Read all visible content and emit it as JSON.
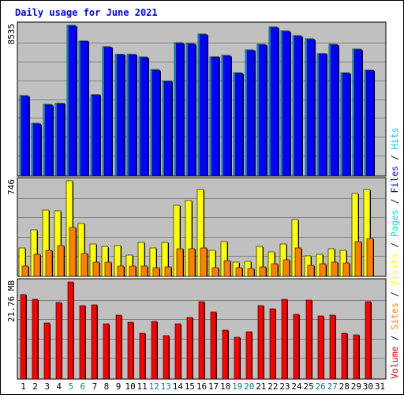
{
  "chart_data": {
    "type": "bar",
    "title": "Daily usage for June 2021",
    "categories": [
      "1",
      "2",
      "3",
      "4",
      "5",
      "6",
      "7",
      "8",
      "9",
      "10",
      "11",
      "12",
      "13",
      "14",
      "15",
      "16",
      "17",
      "18",
      "19",
      "20",
      "21",
      "22",
      "23",
      "24",
      "25",
      "26",
      "27",
      "28",
      "29",
      "30",
      "31"
    ],
    "weekend_days": [
      "5",
      "6",
      "12",
      "13",
      "19",
      "20",
      "26",
      "27"
    ],
    "colors": {
      "title": "#0000ff",
      "panel_bg": "#c0c0c0",
      "frame_bg": "#ffffff",
      "grid": "#808080",
      "hits": "#00c0ff",
      "files": "#0000ff",
      "pages": "#00e0e0",
      "visits": "#ffff00",
      "sites": "#ff8000",
      "kbytes": "#ff0000",
      "weekday_label": "#000000",
      "weekend_label": "#008080"
    },
    "panels": [
      {
        "id": "hits-files",
        "ymax_label": "8535",
        "ymax": 8535,
        "series": [
          {
            "name": "Hits",
            "color_key": "hits",
            "values": [
              4560,
              2990,
              4060,
              4120,
              8535,
              7660,
              4620,
              7330,
              6900,
              6890,
              6750,
              6040,
              5380,
              7550,
              7510,
              8035,
              6760,
              6820,
              5840,
              7140,
              7450,
              8440,
              8220,
              7960,
              7780,
              6940,
              7450,
              5860,
              7190,
              6010,
              0
            ]
          },
          {
            "name": "Files",
            "color_key": "files",
            "values": [
              4520,
              2960,
              4030,
              4100,
              8495,
              7630,
              4590,
              7300,
              6870,
              6860,
              6720,
              6010,
              5350,
              7520,
              7480,
              8005,
              6730,
              6790,
              5810,
              7110,
              7420,
              8410,
              8190,
              7930,
              7750,
              6910,
              7420,
              5830,
              7160,
              5980,
              0
            ]
          }
        ]
      },
      {
        "id": "pages-visits-sites",
        "ymax_label": "746",
        "ymax": 746,
        "series": [
          {
            "name": "Pages",
            "color_key": "pages",
            "values": [
              0,
              0,
              0,
              0,
              0,
              0,
              0,
              0,
              0,
              0,
              0,
              0,
              0,
              0,
              0,
              0,
              0,
              0,
              0,
              0,
              0,
              0,
              0,
              0,
              0,
              0,
              0,
              0,
              0,
              0,
              0
            ]
          },
          {
            "name": "Visits",
            "color_key": "visits",
            "values": [
              221,
              364,
              520,
              511,
              746,
              411,
              252,
              237,
              243,
              166,
              266,
              223,
              266,
              555,
              592,
              677,
              205,
              270,
              111,
              115,
              237,
              193,
              253,
              444,
              159,
              170,
              216,
              204,
              648,
              677,
              0
            ]
          },
          {
            "name": "Sites",
            "color_key": "sites",
            "values": [
              80,
              174,
              204,
              243,
              380,
              180,
              109,
              109,
              83,
              83,
              80,
              70,
              75,
              213,
              213,
              224,
              70,
              121,
              70,
              59,
              77,
              99,
              127,
              222,
              86,
              99,
              114,
              102,
              271,
              293,
              0
            ]
          }
        ]
      },
      {
        "id": "volume",
        "ymax_label": "21.76 MB",
        "ymax": 21.76,
        "series": [
          {
            "name": "Volume",
            "color_key": "kbytes",
            "values": [
              19.0,
              17.9,
              12.5,
              17.2,
              21.76,
              16.4,
              16.7,
              12.3,
              14.3,
              12.7,
              10.2,
              12.9,
              9.7,
              12.4,
              13.8,
              17.4,
              15.1,
              11.0,
              9.4,
              10.6,
              16.4,
              15.7,
              17.9,
              14.5,
              17.7,
              14.1,
              14.3,
              10.2,
              9.9,
              17.4,
              0
            ]
          }
        ]
      }
    ],
    "right_legend": [
      {
        "text": "Volume",
        "color_key": "kbytes"
      },
      {
        "text": " / ",
        "color_key": null
      },
      {
        "text": "Sites",
        "color_key": "sites"
      },
      {
        "text": " / ",
        "color_key": null
      },
      {
        "text": "Visits",
        "color_key": "visits"
      },
      {
        "text": " / ",
        "color_key": null
      },
      {
        "text": "Pages",
        "color_key": "pages"
      },
      {
        "text": " / ",
        "color_key": null
      },
      {
        "text": "Files",
        "color_key": "files"
      },
      {
        "text": " / ",
        "color_key": null
      },
      {
        "text": "Hits",
        "color_key": "hits"
      }
    ]
  }
}
